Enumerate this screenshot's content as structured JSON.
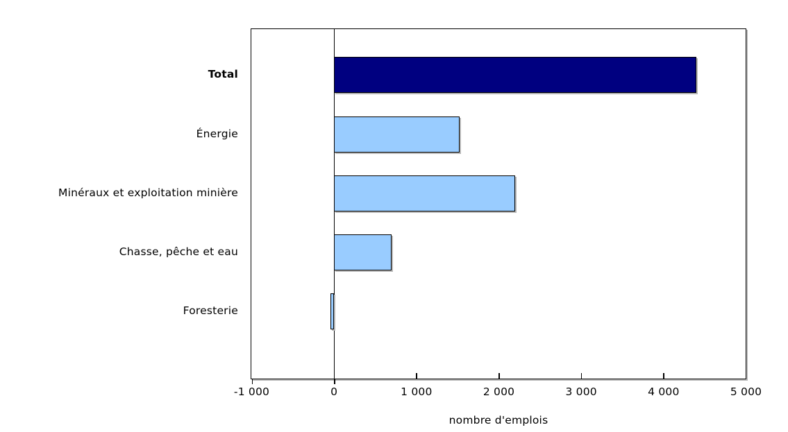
{
  "chart_data": {
    "type": "bar",
    "orientation": "horizontal",
    "title": "",
    "xlabel": "nombre d'emplois",
    "ylabel": "",
    "categories": [
      "Total",
      "Énergie",
      "Minéraux et exploitation minière",
      "Chasse, pêche et eau",
      "Foresterie"
    ],
    "values": [
      4400,
      1530,
      2200,
      700,
      -40
    ],
    "emphasized_category": "Total",
    "bar_colors": [
      "#000080",
      "#99CCFF",
      "#99CCFF",
      "#99CCFF",
      "#99CCFF"
    ],
    "xlim": [
      -1000,
      5000
    ],
    "xticks": [
      {
        "value": -1000,
        "label": "-1 000"
      },
      {
        "value": 0,
        "label": "0"
      },
      {
        "value": 1000,
        "label": "1 000"
      },
      {
        "value": 2000,
        "label": "2 000"
      },
      {
        "value": 3000,
        "label": "3 000"
      },
      {
        "value": 4000,
        "label": "4 000"
      },
      {
        "value": 5000,
        "label": "5 000"
      }
    ],
    "grid": false,
    "legend": false,
    "colors": {
      "total_bar": "#000080",
      "category_bar": "#99CCFF",
      "bar_border": "#000000",
      "axis": "#000000",
      "shadow": "#b8b8b8",
      "background": "#ffffff",
      "text": "#000000"
    }
  }
}
